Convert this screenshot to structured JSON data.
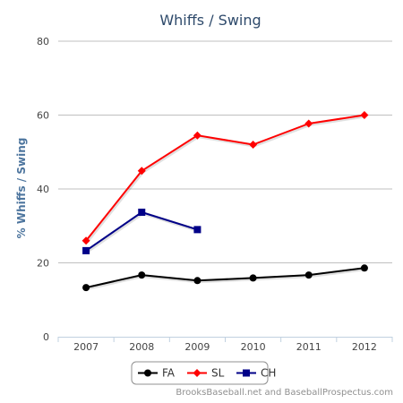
{
  "chart_data": {
    "type": "line",
    "title": "Whiffs  / Swing",
    "xlabel": "",
    "ylabel": "% Whiffs / Swing",
    "categories": [
      "2007",
      "2008",
      "2009",
      "2010",
      "2011",
      "2012"
    ],
    "ylim": [
      0,
      80
    ],
    "yticks": [
      0,
      20,
      40,
      60,
      80
    ],
    "grid": "horizontal",
    "legend_position": "bottom",
    "series": [
      {
        "name": "FA",
        "color": "#000000",
        "marker": "circle",
        "values": [
          13.3,
          16.7,
          15.2,
          15.9,
          16.7,
          18.6
        ]
      },
      {
        "name": "SL",
        "color": "#ff0000",
        "marker": "diamond",
        "values": [
          26.0,
          44.9,
          54.5,
          52.0,
          57.7,
          60.0
        ]
      },
      {
        "name": "CH",
        "color": "#000088",
        "marker": "square",
        "values": [
          23.3,
          33.7,
          29.0,
          null,
          null,
          null
        ]
      }
    ]
  },
  "credit": "BrooksBaseball.net and BaseballProspectus.com"
}
